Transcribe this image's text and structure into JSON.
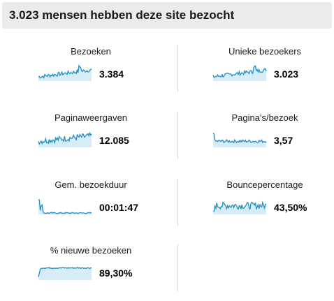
{
  "header": {
    "title": "3.023 mensen hebben deze site bezocht"
  },
  "colors": {
    "header_bg": "#ebebeb",
    "sparkline_stroke": "#1f8fc4",
    "sparkline_fill": "#d6ecf7",
    "divider": "#d6d6d6"
  },
  "metrics": [
    {
      "label": "Bezoeken",
      "value": "3.384"
    },
    {
      "label": "Unieke bezoekers",
      "value": "3.023"
    },
    {
      "label": "Paginaweergaven",
      "value": "12.085"
    },
    {
      "label": "Pagina's/bezoek",
      "value": "3,57"
    },
    {
      "label": "Gem. bezoekduur",
      "value": "00:01:47"
    },
    {
      "label": "Bouncepercentage",
      "value": "43,50%"
    },
    {
      "label": "% nieuwe bezoeken",
      "value": "89,30%"
    }
  ]
}
